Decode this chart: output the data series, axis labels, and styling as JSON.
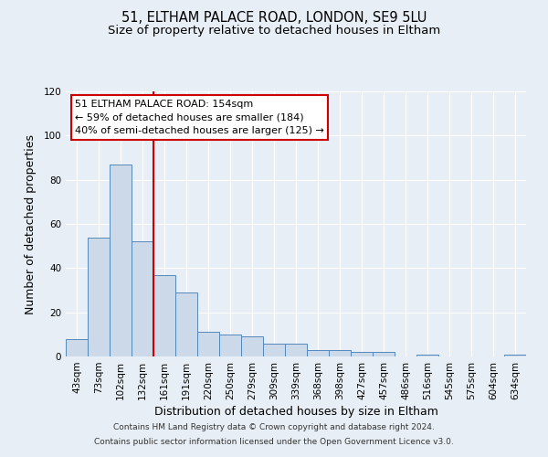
{
  "title": "51, ELTHAM PALACE ROAD, LONDON, SE9 5LU",
  "subtitle": "Size of property relative to detached houses in Eltham",
  "xlabel": "Distribution of detached houses by size in Eltham",
  "ylabel": "Number of detached properties",
  "bar_labels": [
    "43sqm",
    "73sqm",
    "102sqm",
    "132sqm",
    "161sqm",
    "191sqm",
    "220sqm",
    "250sqm",
    "279sqm",
    "309sqm",
    "339sqm",
    "368sqm",
    "398sqm",
    "427sqm",
    "457sqm",
    "486sqm",
    "516sqm",
    "545sqm",
    "575sqm",
    "604sqm",
    "634sqm"
  ],
  "bar_values": [
    8,
    54,
    87,
    52,
    37,
    29,
    11,
    10,
    9,
    6,
    6,
    3,
    3,
    2,
    2,
    0,
    1,
    0,
    0,
    0,
    1
  ],
  "bar_color": "#ccd9e8",
  "bar_edge_color": "#5588bb",
  "ylim": [
    0,
    120
  ],
  "yticks": [
    0,
    20,
    40,
    60,
    80,
    100,
    120
  ],
  "vline_x": 3.5,
  "vline_color": "#cc0000",
  "annotation_box_text": "51 ELTHAM PALACE ROAD: 154sqm\n← 59% of detached houses are smaller (184)\n40% of semi-detached houses are larger (125) →",
  "annotation_box_color": "#cc0000",
  "annotation_box_facecolor": "white",
  "footer_line1": "Contains HM Land Registry data © Crown copyright and database right 2024.",
  "footer_line2": "Contains public sector information licensed under the Open Government Licence v3.0.",
  "background_color": "#e8eef5",
  "grid_color": "white",
  "title_fontsize": 10.5,
  "subtitle_fontsize": 9.5,
  "axis_label_fontsize": 9,
  "tick_fontsize": 7.5,
  "annotation_fontsize": 8,
  "footer_fontsize": 6.5
}
